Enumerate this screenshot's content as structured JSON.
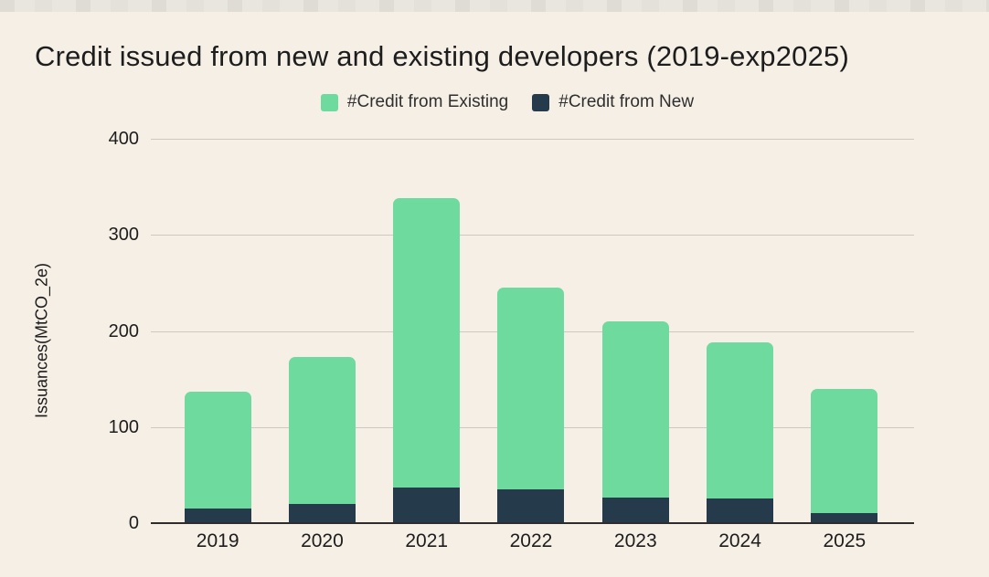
{
  "window": {
    "background": "#f6efe6",
    "edge_strip_color": "#e9e6e0"
  },
  "chart_data": {
    "type": "bar",
    "stacked": true,
    "title": "Credit issued from new and existing developers (2019-exp2025)",
    "ylabel": "Issuances(MtCO_2e)",
    "categories": [
      "2019",
      "2020",
      "2021",
      "2022",
      "2023",
      "2024",
      "2025"
    ],
    "series": [
      {
        "name": "#Credit from Existing",
        "color": "#6eda9e",
        "values": [
          122,
          153,
          301,
          210,
          183,
          162,
          130
        ]
      },
      {
        "name": "#Credit from New",
        "color": "#253a4b",
        "values": [
          15,
          20,
          37,
          35,
          27,
          26,
          10
        ]
      }
    ],
    "stack_order_bottom_to_top": [
      "#Credit from New",
      "#Credit from Existing"
    ],
    "stack_totals": [
      137,
      173,
      338,
      245,
      210,
      188,
      140
    ],
    "yticks": [
      0,
      100,
      200,
      300,
      400
    ],
    "ylim": [
      0,
      400
    ],
    "grid": true,
    "legend_position": "top",
    "colors": {
      "gridline": "#cdc8c0",
      "axis_line": "#2e2d2b",
      "title_text": "#1d1d1d",
      "tick_text": "#1d1d1d",
      "legend_text": "#2f2f2f"
    }
  }
}
